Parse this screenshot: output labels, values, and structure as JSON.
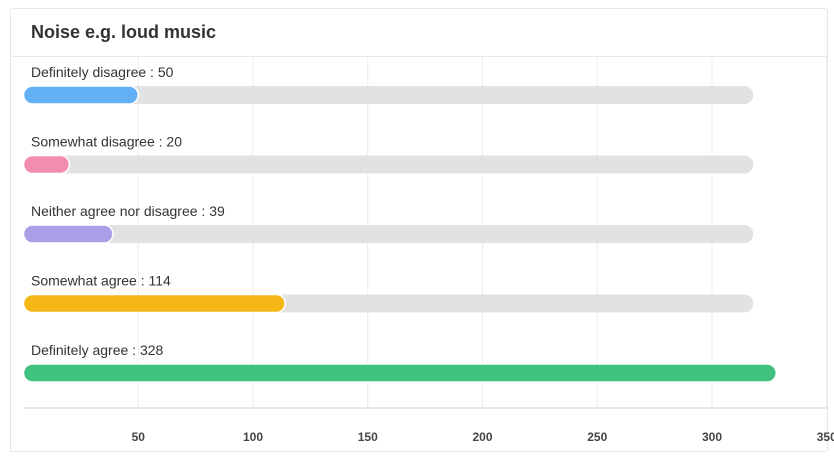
{
  "chart_data": {
    "type": "bar",
    "orientation": "horizontal",
    "title": "Noise e.g. loud music",
    "categories": [
      "Definitely disagree",
      "Somewhat disagree",
      "Neither agree nor disagree",
      "Somewhat agree",
      "Definitely agree"
    ],
    "values": [
      50,
      20,
      39,
      114,
      328
    ],
    "labels": [
      "Definitely disagree : 50",
      "Somewhat disagree : 20",
      "Neither agree nor disagree : 39",
      "Somewhat agree : 114",
      "Definitely agree : 328"
    ],
    "colors": [
      "#62b1f6",
      "#f28cb1",
      "#ab9ee6",
      "#f5b715",
      "#41c17e"
    ],
    "track_color": "#e2e2e2",
    "track_value": 318,
    "xticks": [
      50,
      100,
      150,
      200,
      250,
      300,
      350
    ],
    "xtick_labels": [
      "50",
      "100",
      "150",
      "200",
      "250",
      "300",
      "350"
    ],
    "xlim": [
      0,
      350
    ],
    "grid": true,
    "legend": "none",
    "xlabel": "",
    "ylabel": ""
  }
}
